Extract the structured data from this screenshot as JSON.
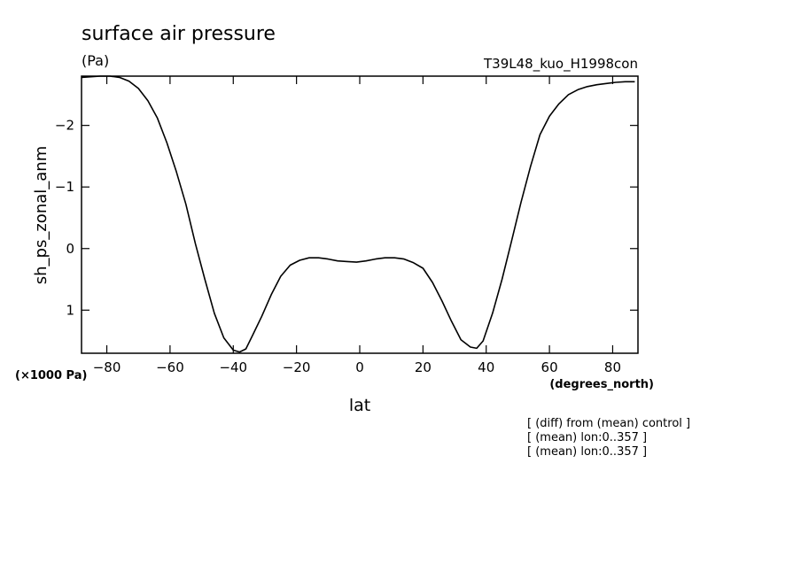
{
  "chart_data": {
    "type": "line",
    "title": "surface air pressure",
    "units": "(Pa)",
    "experiment": "T39L48_kuo_H1998con",
    "xlabel": "lat",
    "x_units": "(degrees_north)",
    "ylabel": "sh_ps_zonal_anm",
    "y_units": "(×1000 Pa)",
    "xlim": [
      -88,
      88
    ],
    "ylim": [
      1.7,
      -2.8
    ],
    "y_inverted": true,
    "x_ticks": [
      -80,
      -60,
      -40,
      -20,
      0,
      20,
      40,
      60,
      80
    ],
    "x_tick_labels": [
      "−80",
      "−60",
      "−40",
      "−20",
      "0",
      "20",
      "40",
      "60",
      "80"
    ],
    "y_ticks": [
      -2,
      -1,
      0,
      1
    ],
    "y_tick_labels": [
      "−2",
      "−1",
      "0",
      "1"
    ],
    "grid": false,
    "series": [
      {
        "x": [
          -88,
          -85,
          -82,
          -79,
          -76,
          -73,
          -70,
          -67,
          -64,
          -61,
          -58,
          -55,
          -52,
          -49,
          -46,
          -43,
          -40,
          -38,
          -36,
          -34,
          -31,
          -28,
          -25,
          -22,
          -19,
          -16,
          -13,
          -10,
          -7,
          -4,
          -1,
          2,
          5,
          8,
          11,
          14,
          17,
          20,
          23,
          26,
          29,
          32,
          35,
          37,
          39,
          42,
          45,
          48,
          51,
          54,
          57,
          60,
          63,
          66,
          69,
          72,
          75,
          78,
          81,
          84,
          87
        ],
        "y": [
          -2.78,
          -2.79,
          -2.8,
          -2.8,
          -2.78,
          -2.72,
          -2.6,
          -2.4,
          -2.12,
          -1.72,
          -1.25,
          -0.72,
          -0.08,
          0.5,
          1.05,
          1.45,
          1.65,
          1.68,
          1.63,
          1.42,
          1.1,
          0.75,
          0.45,
          0.27,
          0.19,
          0.15,
          0.15,
          0.17,
          0.2,
          0.21,
          0.22,
          0.2,
          0.17,
          0.15,
          0.15,
          0.17,
          0.23,
          0.32,
          0.55,
          0.85,
          1.18,
          1.48,
          1.6,
          1.62,
          1.5,
          1.05,
          0.5,
          -0.12,
          -0.75,
          -1.33,
          -1.85,
          -2.15,
          -2.35,
          -2.5,
          -2.58,
          -2.63,
          -2.66,
          -2.68,
          -2.7,
          -2.71,
          -2.71
        ]
      }
    ],
    "notes": [
      "[ (diff) from (mean) control ]",
      "[ (mean) lon:0..357 ]",
      "[ (mean) lon:0..357 ]"
    ]
  }
}
